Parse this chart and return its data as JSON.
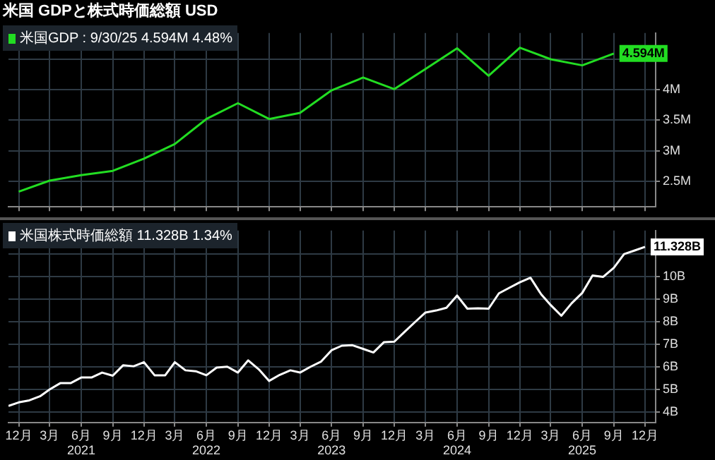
{
  "chart_data": [
    {
      "type": "line",
      "title": "米国  GDPと株式時価総額  USD",
      "x": [
        "2020-12",
        "2021-03",
        "2021-06",
        "2021-09",
        "2021-12",
        "2022-03",
        "2022-06",
        "2022-09",
        "2022-12",
        "2023-03",
        "2023-06",
        "2023-09",
        "2023-12",
        "2024-03",
        "2024-06",
        "2024-09",
        "2024-12",
        "2025-03",
        "2025-06",
        "2025-09"
      ],
      "series": [
        {
          "name": "米国GDP : 9/30/25 4.594M 4.48%",
          "color": "#22dd22",
          "values": [
            2.33,
            2.51,
            2.6,
            2.67,
            2.87,
            3.11,
            3.52,
            3.78,
            3.52,
            3.62,
            3.99,
            4.2,
            4.01,
            4.34,
            4.68,
            4.23,
            4.69,
            4.5,
            4.4,
            4.594
          ],
          "value_labels": [
            null,
            null,
            null,
            null,
            null,
            null,
            null,
            null,
            null,
            null,
            null,
            null,
            null,
            null,
            null,
            null,
            null,
            null,
            null,
            "4.594M"
          ]
        }
      ],
      "xlim": [
        "2020-11",
        "2026-01"
      ],
      "xticks": [
        {
          "value": "2020-12",
          "label": null
        },
        {
          "value": "2021-03",
          "label": null
        },
        {
          "value": "2021-06",
          "label": null
        },
        {
          "value": "2021-09",
          "label": null
        },
        {
          "value": "2021-12",
          "label": null
        },
        {
          "value": "2022-03",
          "label": null
        },
        {
          "value": "2022-06",
          "label": null
        },
        {
          "value": "2022-09",
          "label": null
        },
        {
          "value": "2022-12",
          "label": null
        },
        {
          "value": "2023-03",
          "label": null
        },
        {
          "value": "2023-06",
          "label": null
        },
        {
          "value": "2023-09",
          "label": null
        },
        {
          "value": "2023-12",
          "label": null
        },
        {
          "value": "2024-03",
          "label": null
        },
        {
          "value": "2024-06",
          "label": null
        },
        {
          "value": "2024-09",
          "label": null
        },
        {
          "value": "2024-12",
          "label": null
        },
        {
          "value": "2025-03",
          "label": null
        },
        {
          "value": "2025-06",
          "label": null
        },
        {
          "value": "2025-09",
          "label": null
        },
        {
          "value": "2025-12",
          "label": null
        }
      ],
      "ylim": [
        2.08,
        4.93
      ],
      "yticks": [
        {
          "value": 2.5,
          "label": "2.5M"
        },
        {
          "value": 3,
          "label": "3M"
        },
        {
          "value": 3.5,
          "label": "3.5M"
        },
        {
          "value": 4,
          "label": "4M"
        },
        {
          "value": 4.5,
          "label": null
        }
      ],
      "grid": true,
      "legend": "top left",
      "tick_labels": "y"
    },
    {
      "type": "line",
      "x": [
        "2020-11",
        "2020-12",
        "2021-01",
        "2021-02",
        "2021-03",
        "2021-04",
        "2021-05",
        "2021-06",
        "2021-07",
        "2021-08",
        "2021-09",
        "2021-10",
        "2021-11",
        "2021-12",
        "2022-01",
        "2022-02",
        "2022-03",
        "2022-04",
        "2022-05",
        "2022-06",
        "2022-07",
        "2022-08",
        "2022-09",
        "2022-10",
        "2022-11",
        "2022-12",
        "2023-01",
        "2023-02",
        "2023-03",
        "2023-04",
        "2023-05",
        "2023-06",
        "2023-07",
        "2023-08",
        "2023-09",
        "2023-10",
        "2023-11",
        "2023-12",
        "2024-01",
        "2024-02",
        "2024-03",
        "2024-04",
        "2024-05",
        "2024-06",
        "2024-07",
        "2024-08",
        "2024-09",
        "2024-10",
        "2024-11",
        "2024-12",
        "2025-01",
        "2025-02",
        "2025-03",
        "2025-04",
        "2025-05",
        "2025-06",
        "2025-07",
        "2025-08",
        "2025-09",
        "2025-10",
        "2025-11",
        "2025-12"
      ],
      "series": [
        {
          "name": "米国株式時価総額 11.328B 1.34%",
          "color": "#ffffff",
          "values": [
            4.28,
            4.44,
            4.53,
            4.71,
            5.01,
            5.29,
            5.29,
            5.54,
            5.54,
            5.76,
            5.62,
            6.08,
            6.04,
            6.22,
            5.64,
            5.64,
            6.22,
            5.86,
            5.82,
            5.64,
            5.98,
            6.02,
            5.76,
            6.3,
            5.9,
            5.39,
            5.66,
            5.86,
            5.76,
            6.02,
            6.24,
            6.75,
            6.95,
            6.97,
            6.81,
            6.65,
            7.11,
            7.13,
            7.58,
            8.02,
            8.42,
            8.51,
            8.63,
            9.17,
            8.59,
            8.61,
            8.59,
            9.27,
            9.52,
            9.76,
            9.96,
            9.23,
            8.75,
            8.28,
            8.83,
            9.29,
            10.06,
            10.0,
            10.4,
            11.01,
            11.17,
            11.328
          ],
          "value_labels": [
            null,
            null,
            null,
            null,
            null,
            null,
            null,
            null,
            null,
            null,
            null,
            null,
            null,
            null,
            null,
            null,
            null,
            null,
            null,
            null,
            null,
            null,
            null,
            null,
            null,
            null,
            null,
            null,
            null,
            null,
            null,
            null,
            null,
            null,
            null,
            null,
            null,
            null,
            null,
            null,
            null,
            null,
            null,
            null,
            null,
            null,
            null,
            null,
            null,
            null,
            null,
            null,
            null,
            null,
            null,
            null,
            null,
            null,
            null,
            null,
            null,
            "11.328B"
          ]
        }
      ],
      "xlim": [
        "2020-11",
        "2026-01"
      ],
      "xticks": [
        {
          "value": "2020-12",
          "label": "12月"
        },
        {
          "value": "2021-03",
          "label": "3月"
        },
        {
          "value": "2021-06",
          "label": "6月\n2021"
        },
        {
          "value": "2021-09",
          "label": "9月"
        },
        {
          "value": "2021-12",
          "label": "12月"
        },
        {
          "value": "2022-03",
          "label": "3月"
        },
        {
          "value": "2022-06",
          "label": "6月\n2022"
        },
        {
          "value": "2022-09",
          "label": "9月"
        },
        {
          "value": "2022-12",
          "label": "12月"
        },
        {
          "value": "2023-03",
          "label": "3月"
        },
        {
          "value": "2023-06",
          "label": "6月\n2023"
        },
        {
          "value": "2023-09",
          "label": "9月"
        },
        {
          "value": "2023-12",
          "label": "12月"
        },
        {
          "value": "2024-03",
          "label": "3月"
        },
        {
          "value": "2024-06",
          "label": "6月\n2024"
        },
        {
          "value": "2024-09",
          "label": "9月"
        },
        {
          "value": "2024-12",
          "label": "12月"
        },
        {
          "value": "2025-03",
          "label": "3月"
        },
        {
          "value": "2025-06",
          "label": "6月\n2025"
        },
        {
          "value": "2025-09",
          "label": "9月"
        },
        {
          "value": "2025-12",
          "label": "12月"
        }
      ],
      "ylim": [
        3.55,
        12.05
      ],
      "yticks": [
        {
          "value": 4,
          "label": "4B"
        },
        {
          "value": 5,
          "label": "5B"
        },
        {
          "value": 6,
          "label": "6B"
        },
        {
          "value": 7,
          "label": "7B"
        },
        {
          "value": 8,
          "label": "8B"
        },
        {
          "value": 9,
          "label": "9B"
        },
        {
          "value": 10,
          "label": "10B"
        },
        {
          "value": 11,
          "label": null
        }
      ],
      "grid": true,
      "legend": "top left"
    }
  ]
}
